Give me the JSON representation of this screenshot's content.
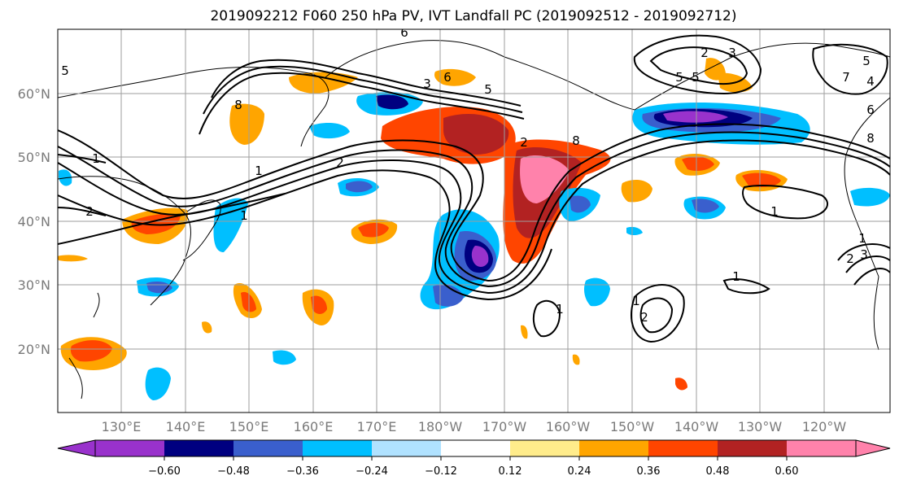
{
  "title": "2019092212 F060 250 hPa PV, IVT Landfall PC (2019092512 - 2019092712)",
  "lat_labels": [
    "60°N",
    "50°N",
    "40°N",
    "30°N",
    "20°N"
  ],
  "lon_labels": [
    "130°E",
    "140°E",
    "150°E",
    "160°E",
    "170°E",
    "180°W",
    "170°W",
    "160°W",
    "150°W",
    "140°W",
    "130°W",
    "120°W"
  ],
  "colorbar": {
    "ticks": [
      "−0.60",
      "−0.48",
      "−0.36",
      "−0.24",
      "−0.12",
      "0.12",
      "0.24",
      "0.36",
      "0.48",
      "0.60"
    ],
    "colors": [
      "#9932cc",
      "#000080",
      "#3a5fcd",
      "#00bfff",
      "#b0e2ff",
      "#ffffff",
      "#ffec8b",
      "#ffa500",
      "#ff4500",
      "#b22222",
      "#ff82ab"
    ]
  },
  "contour_labels": [
    "1",
    "2",
    "1",
    "2",
    "3",
    "6",
    "5",
    "8",
    "6",
    "5",
    "1",
    "2",
    "3",
    "5",
    "4",
    "7",
    "6",
    "8",
    "1",
    "1",
    "1",
    "1",
    "2",
    "1",
    "2",
    "3",
    "5",
    "8",
    "2",
    "5"
  ]
}
